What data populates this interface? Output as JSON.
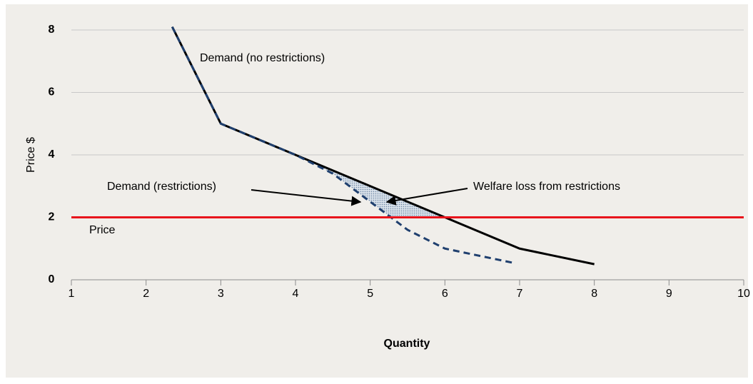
{
  "chart_data": {
    "type": "line",
    "xlabel": "Quantity",
    "ylabel": "Price $",
    "xlim": [
      1,
      10
    ],
    "xticks": [
      1,
      2,
      3,
      4,
      5,
      6,
      7,
      8,
      9,
      10
    ],
    "ylim": [
      0,
      8
    ],
    "yticks": [
      0,
      2,
      4,
      6,
      8
    ],
    "grid": true,
    "series": [
      {
        "name": "Demand (no restrictions)",
        "color": "#000000",
        "style": "solid",
        "x": [
          2.35,
          3,
          4,
          5,
          6,
          7,
          8
        ],
        "values": [
          8.1,
          5,
          4,
          3,
          2,
          1,
          0.5
        ]
      },
      {
        "name": "Demand (restrictions)",
        "color": "#1f3f6e",
        "style": "dashed",
        "x": [
          2.35,
          3,
          4,
          4.5,
          5,
          5.5,
          6,
          6.5,
          6.9
        ],
        "values": [
          8.1,
          5,
          4,
          3.4,
          2.5,
          1.6,
          1.0,
          0.75,
          0.55
        ]
      },
      {
        "name": "Price",
        "color": "#e8141c",
        "style": "solid",
        "x": [
          1,
          10
        ],
        "values": [
          2,
          2
        ]
      }
    ],
    "annotations": [
      "Welfare loss from restrictions"
    ]
  }
}
